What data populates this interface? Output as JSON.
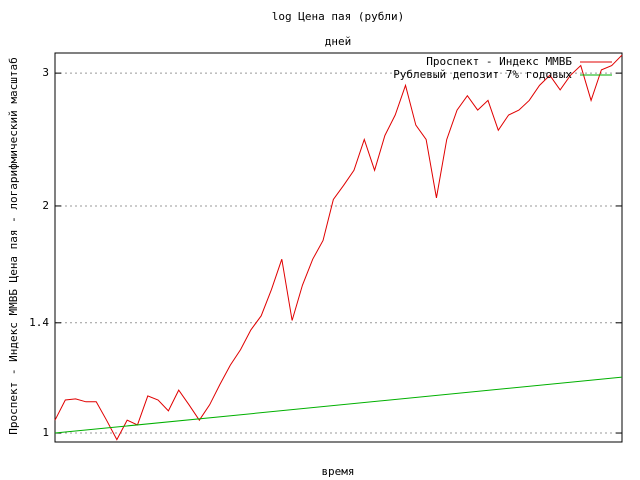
{
  "chart_data": {
    "type": "line",
    "title": "log Цена пая (рубли)",
    "subtitle": "дней",
    "x_label": "время",
    "y_label": "Проспект - Индекс ММВБ Цена пая - логарифмический масштаб",
    "log_y": true,
    "grid": true,
    "legend": "top-right",
    "ylim": [
      0.973,
      3.19
    ],
    "yticks": [
      1,
      1.4,
      2,
      3
    ],
    "series": [
      {
        "name": "Проспект - Индекс ММВБ",
        "color": "#e00000",
        "values": [
          1.04,
          1.106,
          1.11,
          1.1,
          1.1,
          1.04,
          0.98,
          1.04,
          1.025,
          1.12,
          1.106,
          1.07,
          1.14,
          1.09,
          1.04,
          1.09,
          1.16,
          1.23,
          1.29,
          1.37,
          1.43,
          1.55,
          1.7,
          1.41,
          1.57,
          1.7,
          1.8,
          2.04,
          2.13,
          2.23,
          2.45,
          2.23,
          2.48,
          2.64,
          2.89,
          2.56,
          2.45,
          2.05,
          2.45,
          2.68,
          2.8,
          2.68,
          2.76,
          2.52,
          2.64,
          2.68,
          2.76,
          2.89,
          2.98,
          2.85,
          2.98,
          3.07,
          2.76,
          3.03,
          3.07,
          3.17
        ]
      },
      {
        "name": "Рублевый депозит 7% годовых",
        "color": "#00b000",
        "values": [
          1,
          1.186
        ]
      }
    ]
  }
}
